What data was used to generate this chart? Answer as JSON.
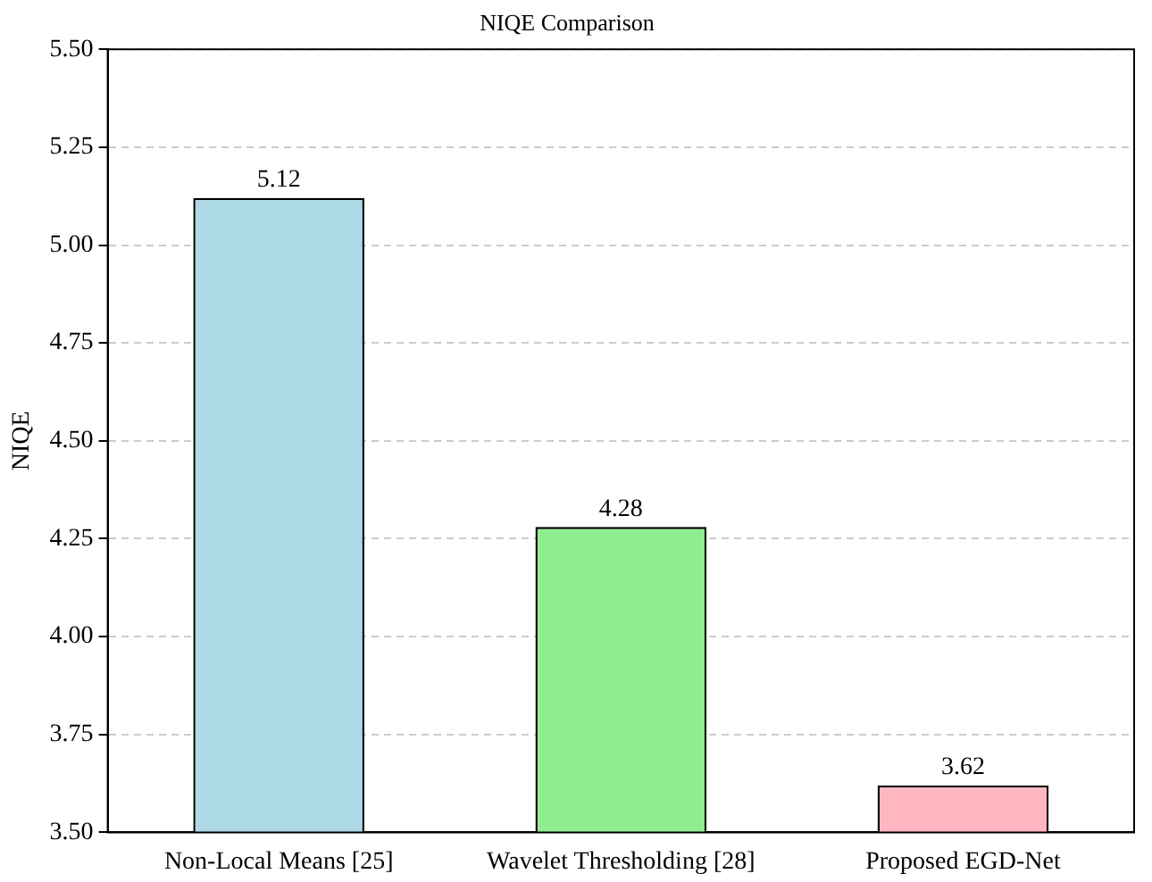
{
  "chart_data": {
    "type": "bar",
    "title": "NIQE Comparison",
    "ylabel": "NIQE",
    "categories": [
      "Non-Local Means [25]",
      "Wavelet Thresholding [28]",
      "Proposed EGD-Net"
    ],
    "values": [
      5.12,
      4.28,
      3.62
    ],
    "colors": [
      "#add8e6",
      "#90ee90",
      "#ffb6c1"
    ],
    "ylim": [
      3.5,
      5.5
    ],
    "yticks": [
      {
        "value": 3.5,
        "label": "3.50"
      },
      {
        "value": 3.75,
        "label": "3.75"
      },
      {
        "value": 4.0,
        "label": "4.00"
      },
      {
        "value": 4.25,
        "label": "4.25"
      },
      {
        "value": 4.5,
        "label": "4.50"
      },
      {
        "value": 4.75,
        "label": "4.75"
      },
      {
        "value": 5.0,
        "label": "5.00"
      },
      {
        "value": 5.25,
        "label": "5.25"
      },
      {
        "value": 5.5,
        "label": "5.50"
      }
    ],
    "grid": "y",
    "data_labels": true,
    "legend": false
  }
}
